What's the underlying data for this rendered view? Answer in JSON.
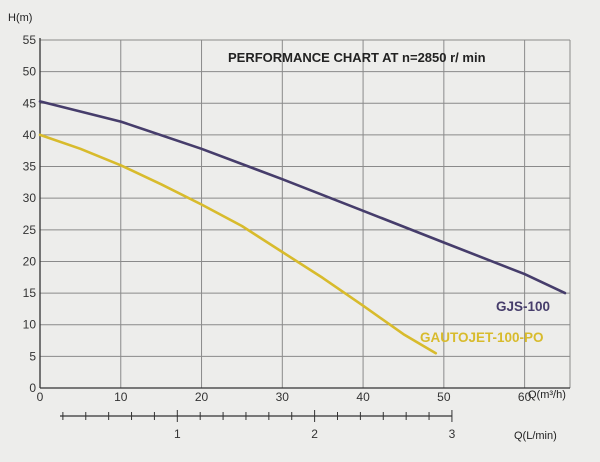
{
  "chart_data": {
    "type": "line",
    "title": "PERFORMANCE CHART AT n=2850 r/ min",
    "ylabel": "H(m)",
    "xlabel": "Q(m³/h)",
    "xlabel_secondary": "Q(L/min)",
    "ylim": [
      0,
      55
    ],
    "xlim": [
      0,
      65
    ],
    "yticks": [
      "0",
      "5",
      "10",
      "15",
      "20",
      "25",
      "30",
      "35",
      "40",
      "45",
      "50",
      "55"
    ],
    "xticks": [
      "0",
      "10",
      "20",
      "30",
      "40",
      "50",
      "60"
    ],
    "xticks_secondary": [
      "1",
      "2",
      "3"
    ],
    "secondary_scale_per_label": 17,
    "grid": true,
    "series": [
      {
        "name": "GJS-100",
        "color": "#463d6b",
        "x": [
          0,
          10,
          20,
          30,
          40,
          50,
          60,
          65
        ],
        "y": [
          45.3,
          42.1,
          37.8,
          33.0,
          28.0,
          23.0,
          18.0,
          15.0
        ]
      },
      {
        "name": "GAUTOJET-100-PO",
        "color": "#d8bb2c",
        "x": [
          0,
          5,
          10,
          15,
          20,
          25,
          30,
          35,
          40,
          45,
          49
        ],
        "y": [
          40.0,
          37.8,
          35.2,
          32.2,
          29.0,
          25.6,
          21.5,
          17.4,
          13.0,
          8.5,
          5.5
        ]
      }
    ]
  }
}
